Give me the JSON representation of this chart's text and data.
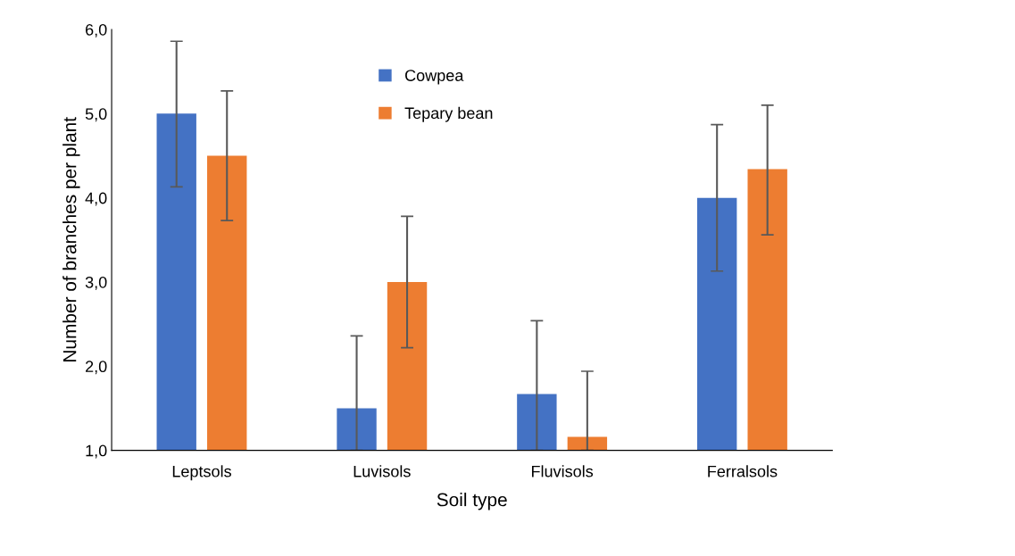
{
  "chart_data": {
    "type": "bar",
    "xlabel": "Soil type",
    "ylabel": "Number of branches per plant",
    "categories": [
      "Leptsols",
      "Luvisols",
      "Fluvisols",
      "Ferralsols"
    ],
    "series": [
      {
        "name": "Cowpea",
        "color": "#4472c4",
        "values": [
          5.0,
          1.5,
          1.67,
          4.0
        ],
        "errors": [
          [
            4.13,
            5.86
          ],
          [
            1.0,
            2.36
          ],
          [
            1.0,
            2.54
          ],
          [
            3.13,
            4.87
          ]
        ]
      },
      {
        "name": "Tepary bean",
        "color": "#ed7d31",
        "values": [
          4.5,
          3.0,
          1.16,
          4.34
        ],
        "errors": [
          [
            3.73,
            5.27
          ],
          [
            2.22,
            3.78
          ],
          [
            1.0,
            1.94
          ],
          [
            3.56,
            5.1
          ]
        ]
      }
    ],
    "ylim": [
      1.0,
      6.0
    ],
    "yticks": [
      {
        "value": 1.0,
        "label": "1,0"
      },
      {
        "value": 2.0,
        "label": "2,0"
      },
      {
        "value": 3.0,
        "label": "3,0"
      },
      {
        "value": 4.0,
        "label": "4,0"
      },
      {
        "value": 5.0,
        "label": "5,0"
      },
      {
        "value": 6.0,
        "label": "6,0"
      }
    ],
    "grid": false,
    "legend": "top"
  }
}
